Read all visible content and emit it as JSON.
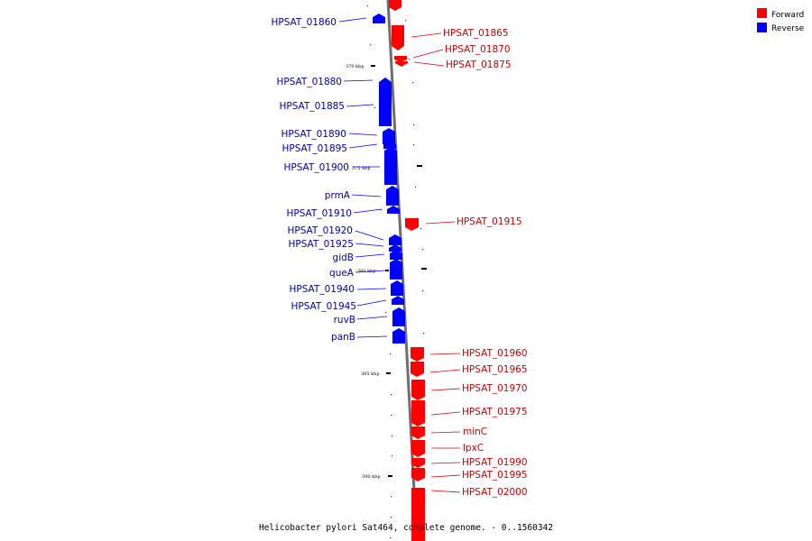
{
  "caption": "Helicobacter pylori Sat464, complete genome. - 0..1560342",
  "legend": {
    "forward_label": "Forward",
    "reverse_label": "Reverse",
    "forward_color": "#ff0000",
    "reverse_color": "#0000ff"
  },
  "ticks": [
    "370 kbp",
    "375 kbp",
    "380 kbp",
    "385 kbp",
    "390 kbp"
  ],
  "genes": {
    "reverse": [
      "HPSAT_01860",
      "HPSAT_01880",
      "HPSAT_01885",
      "HPSAT_01890",
      "HPSAT_01895",
      "HPSAT_01900",
      "prmA",
      "HPSAT_01910",
      "HPSAT_01920",
      "HPSAT_01925",
      "gidB",
      "queA",
      "HPSAT_01940",
      "HPSAT_01945",
      "ruvB",
      "panB"
    ],
    "forward": [
      "HPSAT_01865",
      "HPSAT_01870",
      "HPSAT_01875",
      "HPSAT_01915",
      "HPSAT_01960",
      "HPSAT_01965",
      "HPSAT_01970",
      "HPSAT_01975",
      "minC",
      "lpxC",
      "HPSAT_01990",
      "HPSAT_01995",
      "HPSAT_02000"
    ]
  }
}
